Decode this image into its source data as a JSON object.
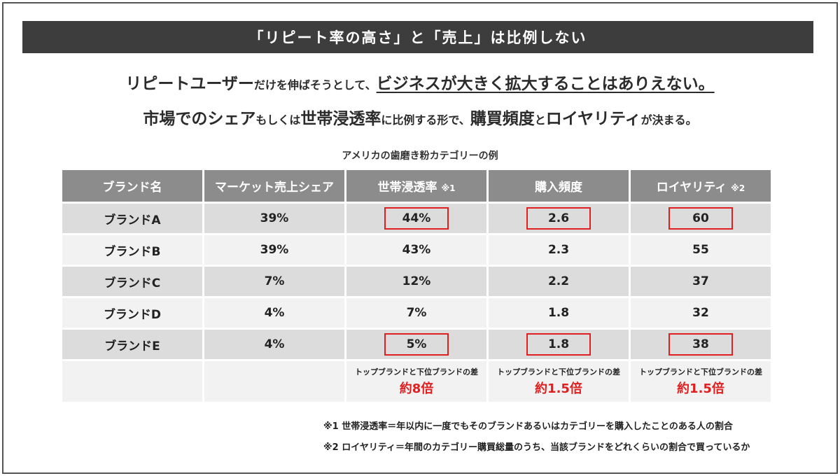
{
  "title": "「リピート率の高さ」と「売上」は比例しない",
  "lead1": {
    "part1": "リピートユーザー",
    "part2": "だけを伸ばそうとして、",
    "part3": "ビジネスが大きく拡大することはありえない。"
  },
  "lead2": {
    "part1": "市場でのシェア",
    "part2": "もしくは",
    "part3": "世帯浸透率",
    "part4": "に比例する形で、",
    "part5": "購買頻度",
    "part6": "と",
    "part7": "ロイヤリティ",
    "part8": "が決まる。"
  },
  "caption": "アメリカの歯磨き粉カテゴリーの例",
  "table": {
    "headers": [
      "ブランド名",
      "マーケット売上シェア",
      "世帯浸透率",
      "購入頻度",
      "ロイヤリティ"
    ],
    "header_notes": [
      "",
      "",
      "※1",
      "",
      "※2"
    ],
    "rows": [
      [
        "ブランドA",
        "39%",
        "44%",
        "2.6",
        "60"
      ],
      [
        "ブランドB",
        "39%",
        "43%",
        "2.3",
        "55"
      ],
      [
        "ブランドC",
        "7%",
        "12%",
        "2.2",
        "37"
      ],
      [
        "ブランドD",
        "4%",
        "7%",
        "1.8",
        "32"
      ],
      [
        "ブランドE",
        "4%",
        "5%",
        "1.8",
        "38"
      ]
    ],
    "highlighted_rows": [
      "ブランドA",
      "ブランドE"
    ],
    "diff_label": "トップブランドと下位ブランドの差",
    "diffs": [
      "約8倍",
      "約1.5倍",
      "約1.5倍"
    ]
  },
  "footnotes": [
    "※1 世帯浸透率＝年以内に一度でもそのブランドあるいはカテゴリーを購入したことのある人の割合",
    "※2 ロイヤリティ＝年間のカテゴリー購買総量のうち、当該ブランドをどれくらいの割合で買っているか"
  ],
  "colors": {
    "title_bg": "#3d3d3d",
    "header_bg": "#8c8c8c",
    "highlight": "#e02020"
  }
}
